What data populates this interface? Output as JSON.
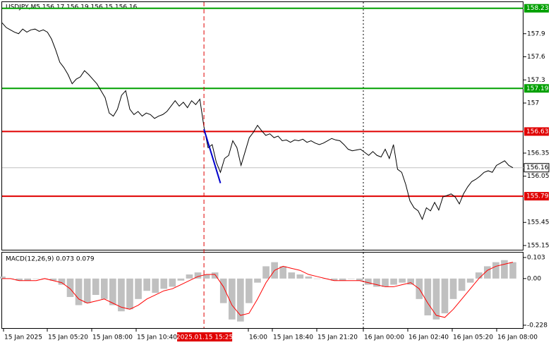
{
  "chart_data": [
    {
      "type": "line",
      "title": "USDJPY,M5  156.17 156.19 156.15 156.16",
      "color": "#000000",
      "values": [
        158.04,
        157.98,
        157.95,
        157.92,
        157.9,
        157.96,
        157.92,
        157.95,
        157.96,
        157.93,
        157.95,
        157.92,
        157.83,
        157.69,
        157.53,
        157.46,
        157.37,
        157.25,
        157.31,
        157.34,
        157.42,
        157.37,
        157.31,
        157.25,
        157.16,
        157.07,
        156.87,
        156.83,
        156.92,
        157.1,
        157.16,
        156.92,
        156.85,
        156.89,
        156.83,
        156.87,
        156.85,
        156.8,
        156.83,
        156.85,
        156.89,
        156.96,
        157.03,
        156.96,
        157.01,
        156.94,
        157.03,
        156.98,
        157.05,
        156.69,
        156.42,
        156.46,
        156.23,
        156.1,
        156.28,
        156.32,
        156.51,
        156.42,
        156.19,
        156.37,
        156.55,
        156.62,
        156.71,
        156.64,
        156.58,
        156.6,
        156.55,
        156.57,
        156.51,
        156.52,
        156.49,
        156.52,
        156.51,
        156.53,
        156.49,
        156.51,
        156.48,
        156.46,
        156.48,
        156.51,
        156.54,
        156.52,
        156.51,
        156.46,
        156.4,
        156.38,
        156.39,
        156.4,
        156.36,
        156.32,
        156.37,
        156.32,
        156.3,
        156.4,
        156.28,
        156.46,
        156.14,
        156.1,
        155.94,
        155.73,
        155.64,
        155.6,
        155.49,
        155.64,
        155.6,
        155.71,
        155.61,
        155.78,
        155.8,
        155.82,
        155.78,
        155.69,
        155.82,
        155.91,
        155.98,
        156.01,
        156.05,
        156.1,
        156.12,
        156.1,
        156.19,
        156.22,
        156.25,
        156.19,
        156.16
      ],
      "ylim": [
        155.095,
        158.31
      ],
      "yticks": [
        157.9,
        157.6,
        157.3,
        157.0,
        156.35,
        156.05,
        155.45,
        155.15
      ],
      "levels": [
        {
          "value": 158.23,
          "color": "#00a000"
        },
        {
          "value": 157.19,
          "color": "#00a000"
        },
        {
          "value": 156.63,
          "color": "#e00000"
        },
        {
          "value": 155.79,
          "color": "#e00000"
        }
      ],
      "last_price": 156.16,
      "trend_line": {
        "color": "#0000cc",
        "x": [
          49,
          53
        ],
        "values": [
          156.66,
          155.96
        ]
      },
      "x_labels": [
        "15 Jan 2025",
        "15 Jan 05:20",
        "15 Jan 08:00",
        "15 Jan 10:40",
        "16:00",
        "15 Jan 18:40",
        "15 Jan 21:20",
        "16 Jan 00:00",
        "16 Jan 02:40",
        "16 Jan 05:20",
        "16 Jan 08:00"
      ],
      "marker_label": "2025.01.15 15:25"
    },
    {
      "type": "macd",
      "title": "MACD(12,26,9) 0.073 0.079",
      "series": [
        {
          "type": "histogram",
          "color": "#c0c0c0",
          "values": [
            0.01,
            0.0,
            -0.01,
            -0.01,
            0.0,
            0.0,
            -0.01,
            -0.03,
            -0.09,
            -0.13,
            -0.12,
            -0.08,
            -0.1,
            -0.13,
            -0.16,
            -0.15,
            -0.1,
            -0.06,
            -0.07,
            -0.05,
            -0.04,
            -0.01,
            0.02,
            0.03,
            0.02,
            0.03,
            -0.12,
            -0.2,
            -0.21,
            -0.12,
            -0.02,
            0.06,
            0.08,
            0.06,
            0.03,
            0.02,
            0.01,
            0.0,
            0.0,
            -0.01,
            -0.01,
            0.0,
            -0.01,
            -0.03,
            -0.04,
            -0.04,
            -0.03,
            -0.02,
            -0.03,
            -0.1,
            -0.18,
            -0.2,
            -0.17,
            -0.1,
            -0.06,
            -0.02,
            0.03,
            0.06,
            0.08,
            0.09,
            0.08
          ]
        },
        {
          "type": "line",
          "color": "#ff0000",
          "values": [
            0.0,
            0.0,
            -0.01,
            -0.01,
            -0.01,
            0.0,
            -0.01,
            -0.02,
            -0.05,
            -0.1,
            -0.12,
            -0.11,
            -0.1,
            -0.12,
            -0.14,
            -0.15,
            -0.13,
            -0.1,
            -0.08,
            -0.06,
            -0.05,
            -0.03,
            -0.01,
            0.01,
            0.02,
            0.02,
            -0.04,
            -0.13,
            -0.18,
            -0.17,
            -0.1,
            -0.02,
            0.04,
            0.06,
            0.05,
            0.04,
            0.02,
            0.01,
            0.0,
            -0.01,
            -0.01,
            -0.01,
            -0.01,
            -0.02,
            -0.03,
            -0.04,
            -0.04,
            -0.03,
            -0.02,
            -0.05,
            -0.12,
            -0.18,
            -0.19,
            -0.15,
            -0.1,
            -0.05,
            0.0,
            0.04,
            0.06,
            0.07,
            0.08
          ]
        }
      ],
      "ylim": [
        -0.242,
        0.127
      ],
      "yticks": [
        0.103,
        {
          "value": 0,
          "label": "0.00"
        },
        -0.228
      ]
    }
  ]
}
